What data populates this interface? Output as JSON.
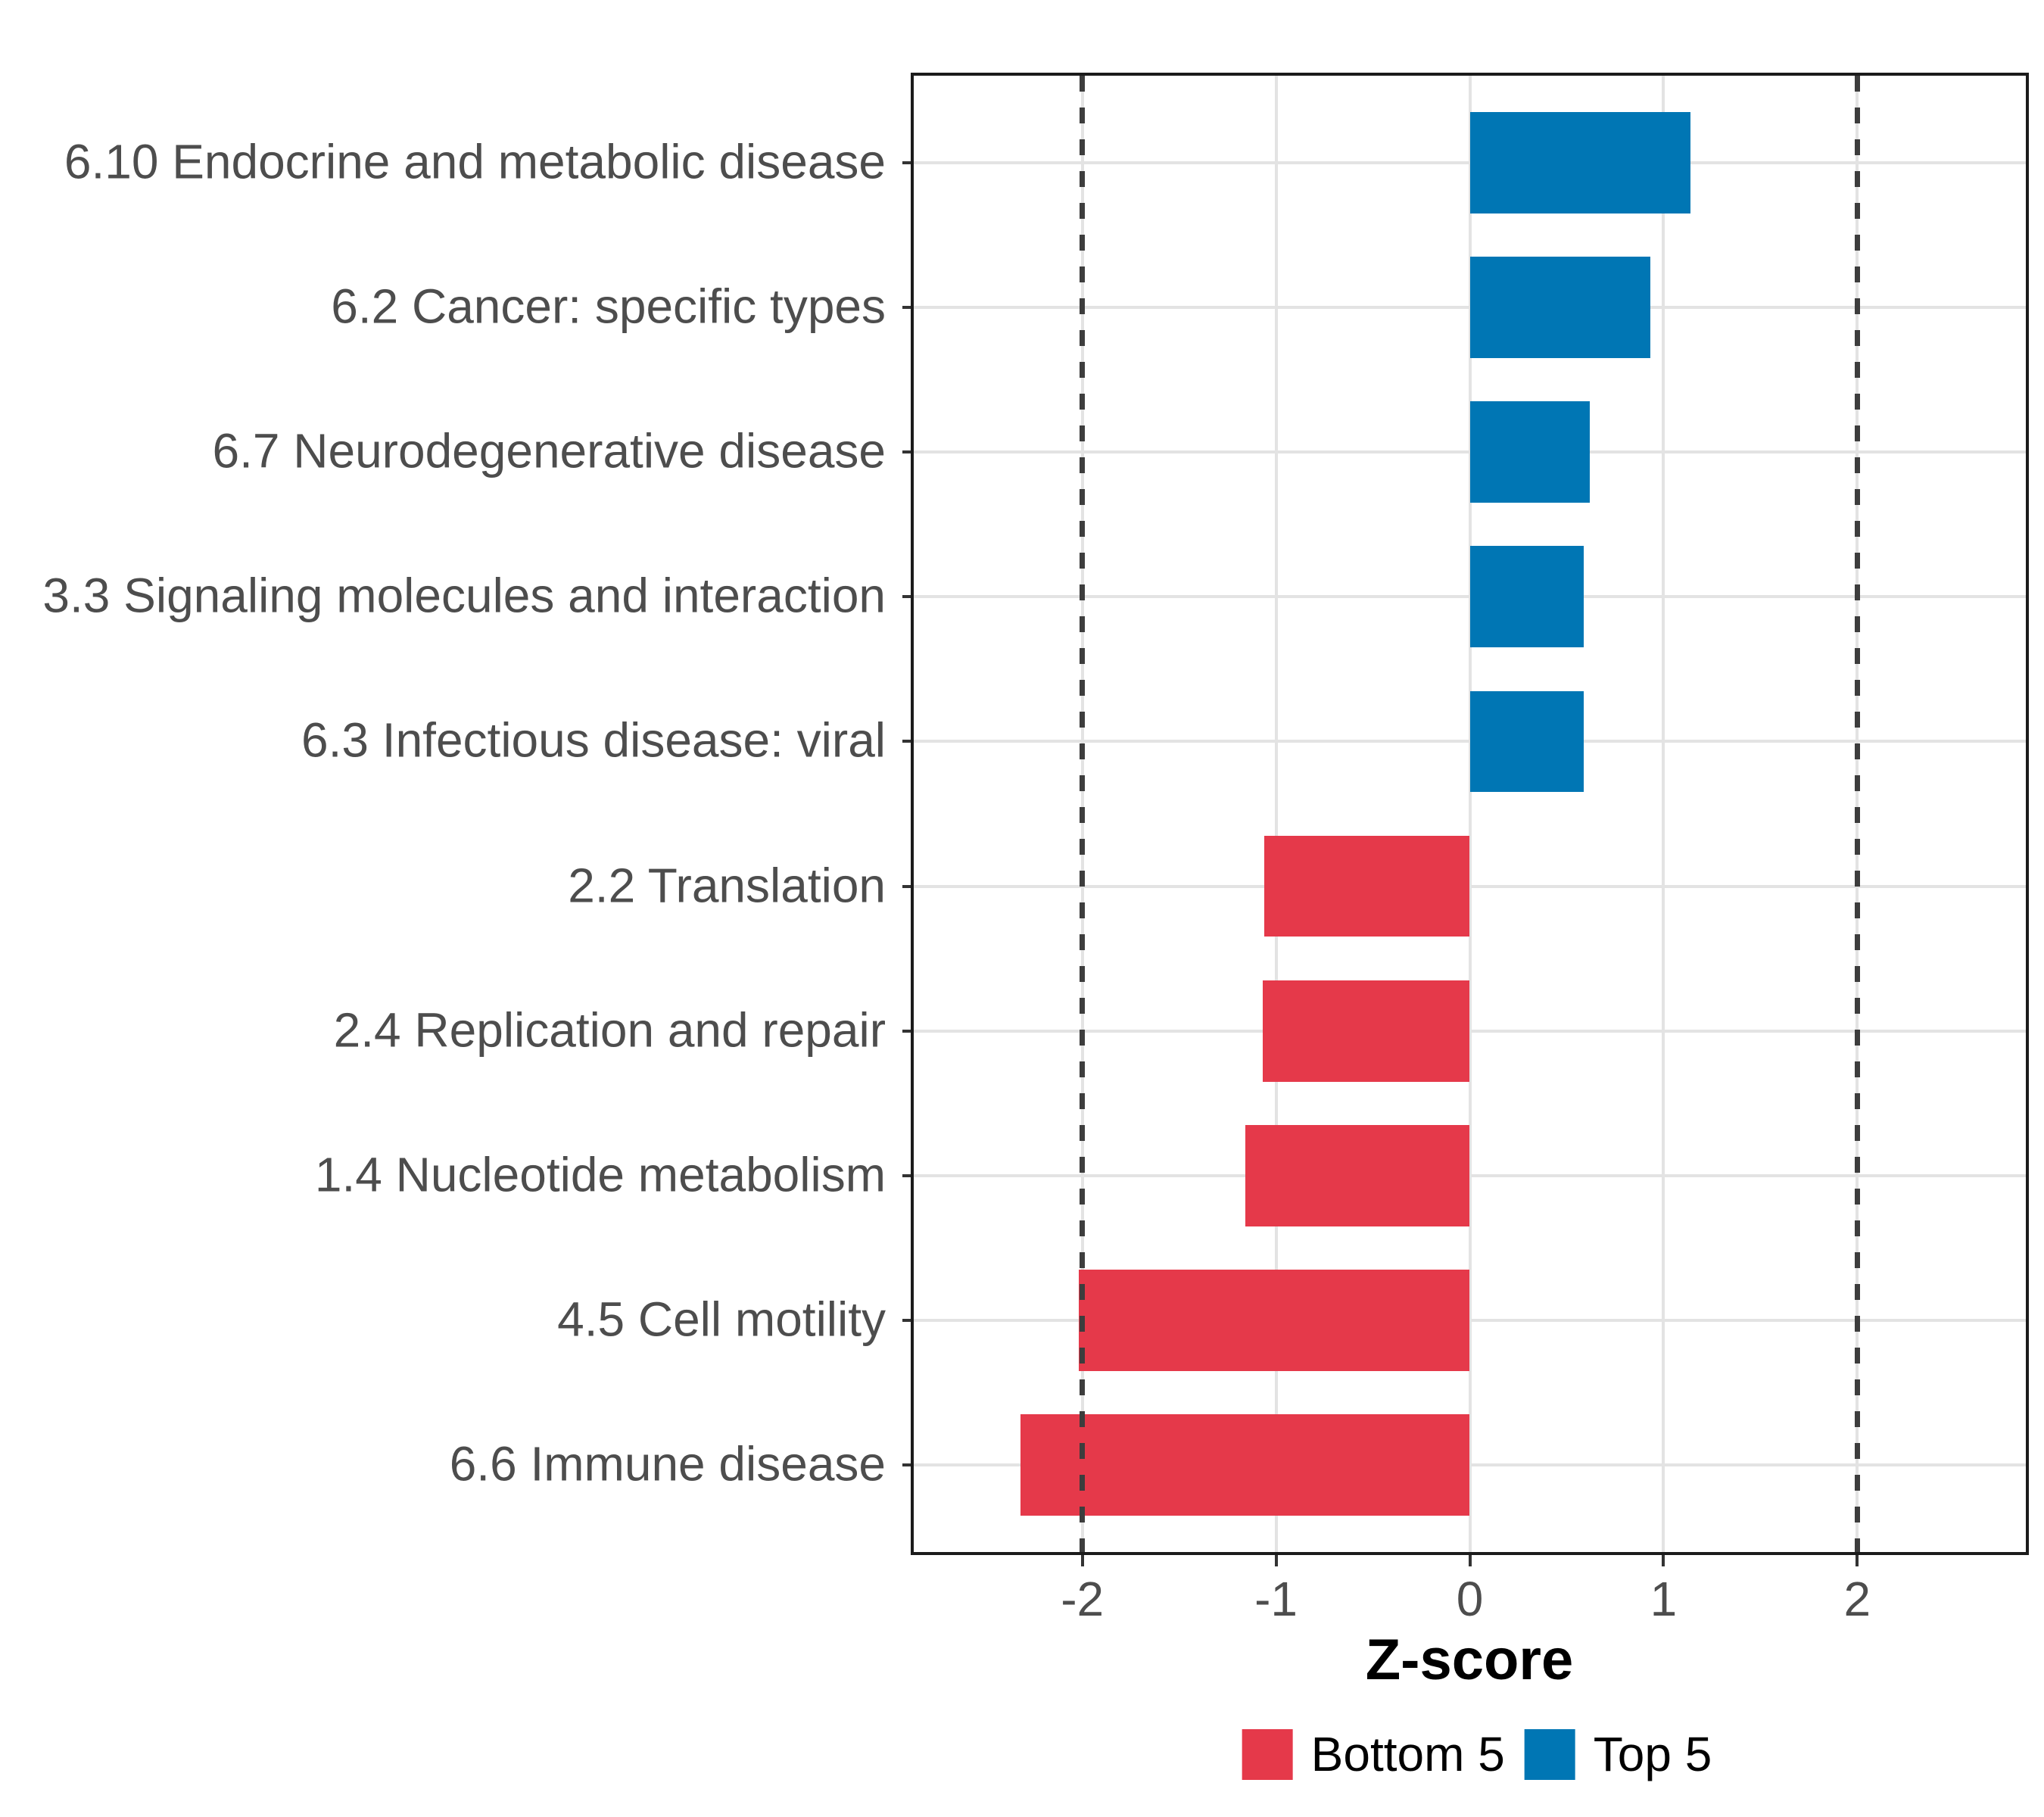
{
  "chart_data": {
    "type": "bar",
    "orientation": "horizontal",
    "title": "",
    "xlabel": "Z-score",
    "ylabel": "",
    "xlim": [
      -2.87,
      2.87
    ],
    "x_ticks": [
      "-2",
      "-1",
      "0",
      "1",
      "2"
    ],
    "x_tick_values": [
      -2,
      -1,
      0,
      1,
      2
    ],
    "reference_lines_x": [
      -2,
      2
    ],
    "grid": {
      "show": true,
      "color": "#E3E3E3"
    },
    "bar_width_fraction": 0.7,
    "categories": [
      "6.10 Endocrine and metabolic disease",
      "6.2 Cancer: specific types",
      "6.7 Neurodegenerative disease",
      "3.3 Signaling molecules and interaction",
      "6.3 Infectious disease: viral",
      "2.2 Translation",
      "2.4 Replication and repair",
      "1.4 Nucleotide metabolism",
      "4.5 Cell motility",
      "6.6 Immune disease"
    ],
    "values": [
      1.14,
      0.93,
      0.62,
      0.59,
      0.59,
      -1.06,
      -1.07,
      -1.16,
      -2.02,
      -2.32
    ],
    "bar_groups": [
      "Top 5",
      "Top 5",
      "Top 5",
      "Top 5",
      "Top 5",
      "Bottom 5",
      "Bottom 5",
      "Bottom 5",
      "Bottom 5",
      "Bottom 5"
    ],
    "group_colors": {
      "Top 5": "#0076B4",
      "Bottom 5": "#E5394A"
    },
    "legend": {
      "position": "bottom",
      "entries": [
        {
          "label": "Bottom 5",
          "color": "#E5394A"
        },
        {
          "label": "Top 5",
          "color": "#0076B4"
        }
      ]
    }
  },
  "style_colors": {
    "reference_line": "#3D3D3D",
    "panel_border": "#1B1B1B",
    "axis_text": "#4D4D4D",
    "tick_mark": "#333333",
    "gridline": "#E3E3E3",
    "background": "#FFFFFF"
  }
}
